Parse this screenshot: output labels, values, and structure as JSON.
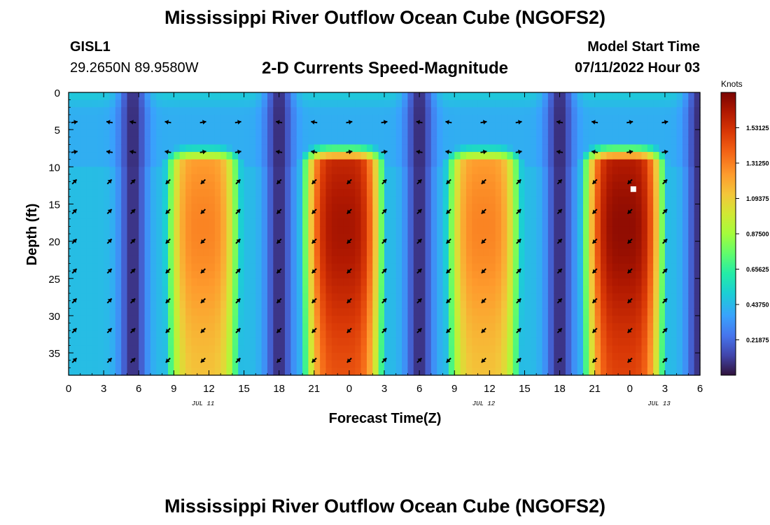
{
  "header": {
    "title": "Mississippi River Outflow Ocean Cube (NGOFS2)",
    "station_name": "GISL1",
    "station_coords": "29.2650N  89.9580W",
    "subtitle": "2-D Currents Speed-Magnitude",
    "model_start_label": "Model Start Time",
    "model_start_value": "07/11/2022 Hour 03"
  },
  "footer": {
    "title": "Mississippi River Outflow Ocean Cube (NGOFS2)"
  },
  "chart_data": {
    "type": "heatmap",
    "title": "2-D Currents Speed-Magnitude",
    "xlabel": "Forecast Time(Z)",
    "ylabel": "Depth (ft)",
    "x_range_hours": [
      0,
      54
    ],
    "x_ticks": [
      {
        "hour": 0,
        "label": "0"
      },
      {
        "hour": 3,
        "label": "3"
      },
      {
        "hour": 6,
        "label": "6"
      },
      {
        "hour": 9,
        "label": "9"
      },
      {
        "hour": 12,
        "label": "12"
      },
      {
        "hour": 15,
        "label": "15"
      },
      {
        "hour": 18,
        "label": "18"
      },
      {
        "hour": 21,
        "label": "21"
      },
      {
        "hour": 24,
        "label": "0"
      },
      {
        "hour": 27,
        "label": "3"
      },
      {
        "hour": 30,
        "label": "6"
      },
      {
        "hour": 33,
        "label": "9"
      },
      {
        "hour": 36,
        "label": "12"
      },
      {
        "hour": 39,
        "label": "15"
      },
      {
        "hour": 42,
        "label": "18"
      },
      {
        "hour": 45,
        "label": "21"
      },
      {
        "hour": 48,
        "label": "0"
      },
      {
        "hour": 51,
        "label": "3"
      },
      {
        "hour": 54,
        "label": "6"
      }
    ],
    "date_labels": [
      {
        "hour": 11.5,
        "label": "JUL 11"
      },
      {
        "hour": 35.5,
        "label": "JUL 12"
      },
      {
        "hour": 50.5,
        "label": "JUL 13"
      }
    ],
    "y_range_ft": [
      0,
      38
    ],
    "y_ticks": [
      0,
      5,
      10,
      15,
      20,
      25,
      30,
      35
    ],
    "colorbar": {
      "unit": "Knots",
      "min": 0.0,
      "max": 1.75,
      "tick_labels": [
        "1.53125",
        "1.31250",
        "1.09375",
        "0.87500",
        "0.65625",
        "0.43750",
        "0.21875"
      ],
      "tick_values": [
        1.53125,
        1.3125,
        1.09375,
        0.875,
        0.65625,
        0.4375,
        0.21875
      ]
    },
    "speed_model": {
      "peaks": [
        {
          "center_hour": 11.5,
          "halfwidth_hours": 3.6,
          "peak_knots": 1.3
        },
        {
          "center_hour": 23.5,
          "halfwidth_hours": 3.8,
          "peak_knots": 1.65
        },
        {
          "center_hour": 35.5,
          "halfwidth_hours": 3.6,
          "peak_knots": 1.3
        },
        {
          "center_hour": 47.5,
          "halfwidth_hours": 3.8,
          "peak_knots": 1.7
        }
      ],
      "slack_hours": [
        5.5,
        18,
        30,
        42,
        54
      ],
      "surface_depth_ft": 9,
      "surface_speed_knots": 0.5
    },
    "vector_columns_hours": [
      0.5,
      3.5,
      5.5,
      8.5,
      11.5,
      14.5,
      18,
      21,
      24,
      27,
      30,
      32.5,
      35.5,
      38.5,
      42,
      45,
      48,
      51
    ],
    "vector_rows_ft": [
      4,
      8,
      12,
      16,
      20,
      24,
      28,
      32,
      36
    ],
    "marker": {
      "hour": 48.3,
      "depth_ft": 13
    }
  }
}
